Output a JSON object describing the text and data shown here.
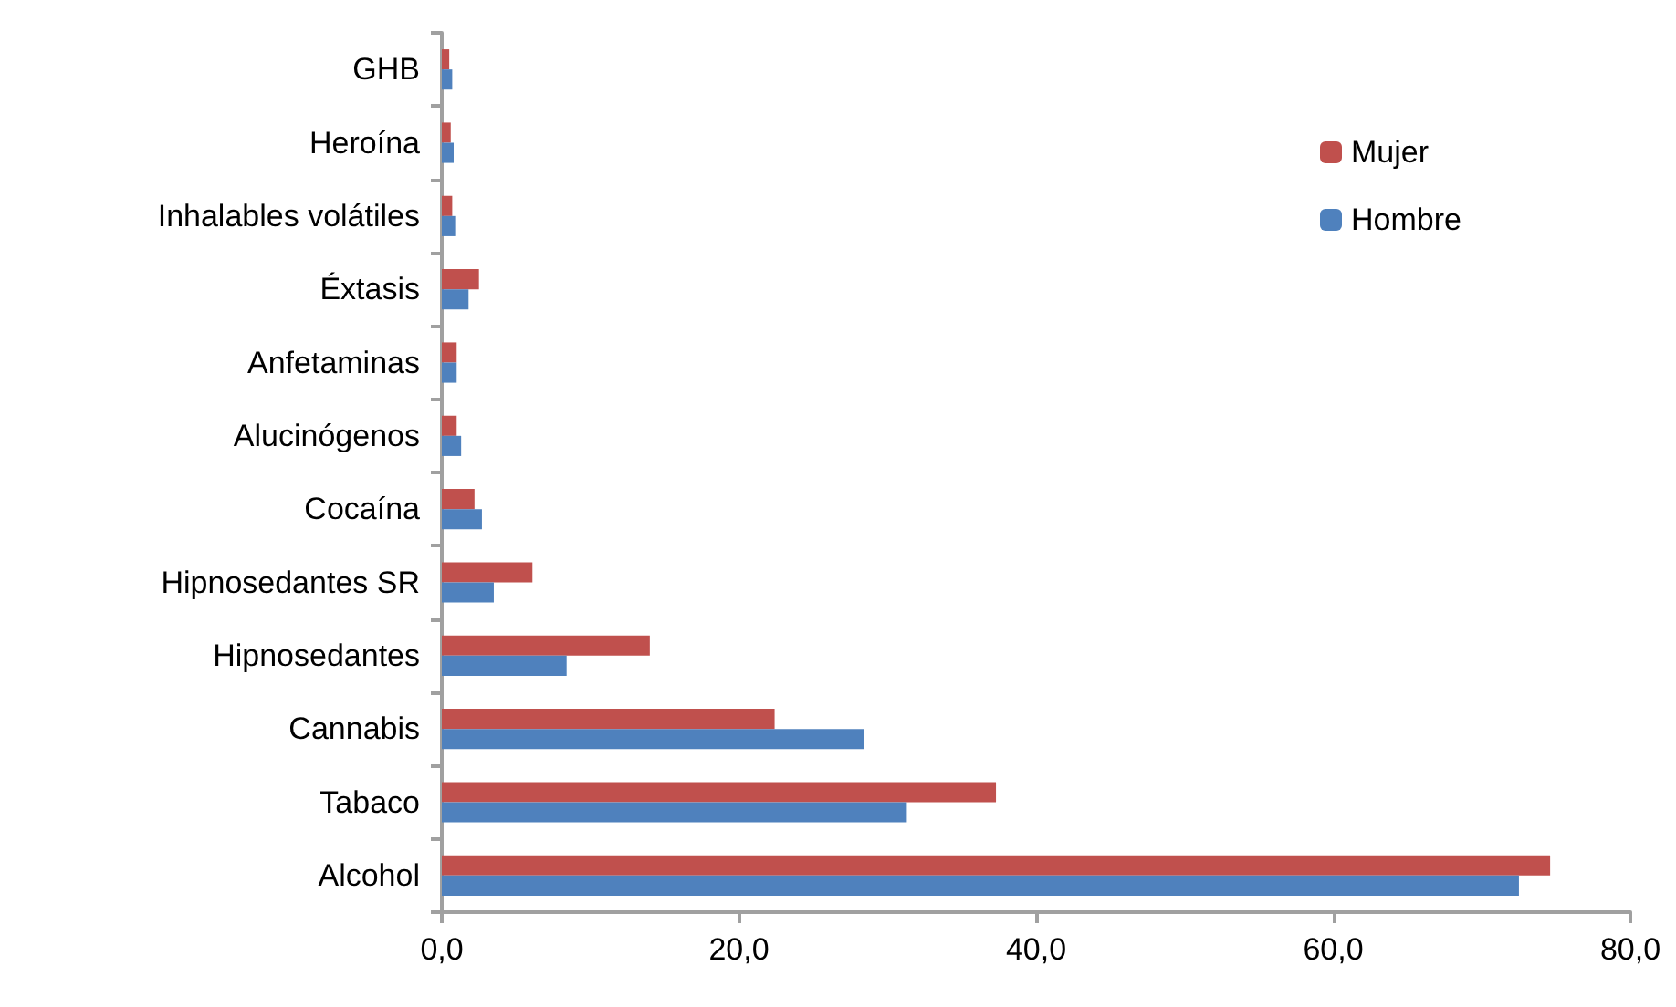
{
  "chart_data": {
    "type": "bar",
    "orientation": "horizontal",
    "categories": [
      "GHB",
      "Heroína",
      "Inhalables volátiles",
      "Éxtasis",
      "Anfetaminas",
      "Alucinógenos",
      "Cocaína",
      "Hipnosedantes SR",
      "Hipnosedantes",
      "Cannabis",
      "Tabaco",
      "Alcohol"
    ],
    "series": [
      {
        "name": "Mujer",
        "color": "#c0504d",
        "values": [
          0.5,
          0.6,
          0.7,
          2.5,
          1.0,
          1.0,
          2.2,
          6.1,
          14.0,
          22.4,
          37.3,
          74.6
        ]
      },
      {
        "name": "Hombre",
        "color": "#4f81bd",
        "values": [
          0.7,
          0.8,
          0.9,
          1.8,
          1.0,
          1.3,
          2.7,
          3.5,
          8.4,
          28.4,
          31.3,
          72.5
        ]
      }
    ],
    "xlim": [
      0,
      80
    ],
    "xticks": [
      {
        "value": 0,
        "label": "0,0"
      },
      {
        "value": 20,
        "label": "20,0"
      },
      {
        "value": 40,
        "label": "40,0"
      },
      {
        "value": 60,
        "label": "60,0"
      },
      {
        "value": 80,
        "label": "80,0"
      }
    ],
    "legend": "top right",
    "grid": false
  }
}
